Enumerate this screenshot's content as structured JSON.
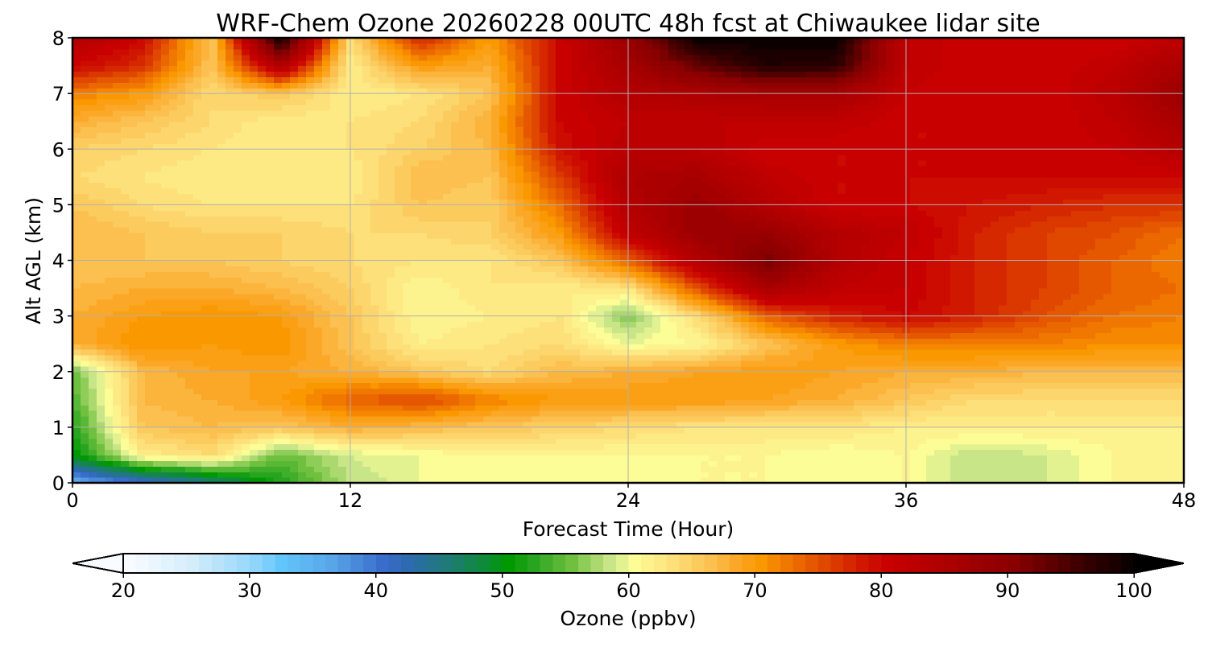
{
  "chart_data": {
    "type": "heatmap",
    "title": "WRF-Chem Ozone  20260228 00UTC 48h fcst at Chiwaukee lidar site",
    "xlabel": "Forecast Time (Hour)",
    "ylabel": "Alt AGL (km)",
    "xlim": [
      0,
      48
    ],
    "ylim": [
      0,
      8
    ],
    "xticks": [
      "0",
      "12",
      "24",
      "36",
      "48"
    ],
    "yticks": [
      "0",
      "1",
      "2",
      "3",
      "4",
      "5",
      "6",
      "7",
      "8"
    ],
    "grid": true,
    "x": [
      0,
      3,
      6,
      9,
      12,
      15,
      18,
      21,
      24,
      27,
      30,
      33,
      36,
      39,
      42,
      45,
      48
    ],
    "y": [
      0,
      0.5,
      1,
      1.5,
      2,
      2.5,
      3,
      3.5,
      4,
      4.5,
      5,
      5.5,
      6,
      6.5,
      7,
      7.5,
      8
    ],
    "z_units": "ppbv",
    "z": [
      [
        35,
        40,
        45,
        52,
        58,
        60,
        60,
        60,
        60,
        61,
        61,
        60,
        61,
        58,
        59,
        61,
        61
      ],
      [
        50,
        62,
        64,
        55,
        59,
        60,
        61,
        61,
        61,
        61,
        61,
        60,
        61,
        58,
        59,
        61,
        61
      ],
      [
        52,
        66,
        67,
        66,
        68,
        67,
        66,
        65,
        64,
        63,
        63,
        63,
        62,
        62,
        62,
        62,
        62
      ],
      [
        54,
        67,
        68,
        70,
        74,
        76,
        72,
        70,
        70,
        70,
        69,
        68,
        66,
        64,
        64,
        64,
        64
      ],
      [
        55,
        67,
        69,
        69,
        68,
        66,
        64,
        67,
        68,
        69,
        70,
        69,
        68,
        68,
        67,
        67,
        67
      ],
      [
        68,
        71,
        70,
        71,
        66,
        62,
        63,
        64,
        60,
        61,
        66,
        70,
        72,
        72,
        72,
        71,
        71
      ],
      [
        68,
        70,
        71,
        70,
        66,
        61,
        62,
        63,
        56,
        64,
        74,
        78,
        80,
        78,
        75,
        73,
        72
      ],
      [
        67,
        68,
        68,
        67,
        65,
        61,
        63,
        62,
        63,
        75,
        86,
        82,
        81,
        78,
        76,
        74,
        73
      ],
      [
        66,
        66,
        66,
        65,
        64,
        63,
        63,
        66,
        74,
        84,
        92,
        84,
        81,
        78,
        76,
        74,
        72
      ],
      [
        67,
        66,
        65,
        65,
        64,
        64,
        65,
        70,
        82,
        88,
        88,
        84,
        82,
        78,
        76,
        75,
        73
      ],
      [
        66,
        64,
        63,
        63,
        63,
        66,
        65,
        73,
        84,
        88,
        84,
        80,
        80,
        79,
        78,
        77,
        77
      ],
      [
        64,
        63,
        62,
        62,
        62,
        67,
        66,
        76,
        85,
        86,
        82,
        80,
        80,
        80,
        80,
        80,
        80
      ],
      [
        65,
        64,
        63,
        62,
        63,
        65,
        67,
        79,
        83,
        83,
        80,
        80,
        80,
        80,
        80,
        81,
        84
      ],
      [
        68,
        66,
        64,
        62,
        63,
        64,
        68,
        80,
        82,
        82,
        82,
        82,
        80,
        80,
        80,
        82,
        86
      ],
      [
        72,
        70,
        64,
        66,
        62,
        63,
        66,
        80,
        84,
        85,
        86,
        86,
        81,
        80,
        80,
        83,
        88
      ],
      [
        80,
        77,
        66,
        85,
        62,
        70,
        68,
        80,
        86,
        93,
        98,
        97,
        82,
        80,
        80,
        82,
        86
      ],
      [
        84,
        80,
        66,
        100,
        64,
        78,
        70,
        80,
        88,
        100,
        100,
        100,
        82,
        80,
        80,
        80,
        82
      ]
    ],
    "colorbar": {
      "label": "Ozone  (ppbv)",
      "min": 20,
      "max": 100,
      "ticks": [
        "20",
        "30",
        "40",
        "50",
        "60",
        "70",
        "80",
        "90",
        "100"
      ],
      "extend": "both",
      "colors": [
        [
          20,
          "#f8fbff"
        ],
        [
          25,
          "#d4edfb"
        ],
        [
          30,
          "#8fd5fb"
        ],
        [
          32,
          "#62c6fb"
        ],
        [
          36,
          "#58a6e8"
        ],
        [
          40,
          "#3a6ccc"
        ],
        [
          42,
          "#2d6ab0"
        ],
        [
          45,
          "#207a7a"
        ],
        [
          48,
          "#0e8a3a"
        ],
        [
          50,
          "#009900"
        ],
        [
          52,
          "#28a520"
        ],
        [
          55,
          "#70c040"
        ],
        [
          58,
          "#c8e688"
        ],
        [
          60,
          "#fdfd98"
        ],
        [
          63,
          "#fde07a"
        ],
        [
          66,
          "#fbc050"
        ],
        [
          68,
          "#fba828"
        ],
        [
          70,
          "#fa9800"
        ],
        [
          72,
          "#f07800"
        ],
        [
          75,
          "#e04800"
        ],
        [
          78,
          "#d01800"
        ],
        [
          80,
          "#c80000"
        ],
        [
          85,
          "#aa0000"
        ],
        [
          90,
          "#8a0000"
        ],
        [
          95,
          "#400000"
        ],
        [
          100,
          "#000000"
        ]
      ]
    }
  }
}
